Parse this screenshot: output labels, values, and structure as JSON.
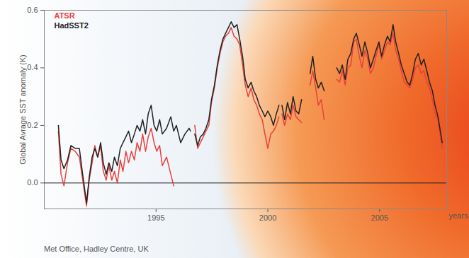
{
  "chart_data": {
    "type": "line",
    "y_label": "Global Avrage SST anomaly (K)",
    "x_label": "years",
    "caption": "Met Office, Hadley Centre, UK",
    "legend": "top-left",
    "grid": false,
    "xlim": [
      1990,
      2008
    ],
    "xticks": [
      1995,
      2000,
      2005
    ],
    "ylim": [
      -0.09,
      0.6
    ],
    "yticks": [
      {
        "value": 0,
        "label": "0.0"
      },
      0.2,
      0.4,
      0.6
    ],
    "x": [
      1990.63,
      1990.75,
      1990.88,
      1991.04,
      1991.19,
      1991.38,
      1991.57,
      1991.7,
      1991.89,
      1992.01,
      1992.14,
      1992.26,
      1992.39,
      1992.52,
      1992.64,
      1992.77,
      1992.89,
      1993.02,
      1993.14,
      1993.27,
      1993.4,
      1993.52,
      1993.65,
      1993.77,
      1993.9,
      1994.03,
      1994.15,
      1994.28,
      1994.4,
      1994.53,
      1994.65,
      1994.78,
      1994.91,
      1995.03,
      1995.16,
      1995.28,
      1995.47,
      1995.66,
      1995.79,
      1995.91,
      1996.1,
      1996.29,
      1996.48,
      1996.54,
      1996.64,
      1996.73,
      1996.86,
      1996.98,
      1997.11,
      1997.23,
      1997.36,
      1997.48,
      1997.61,
      1997.74,
      1997.86,
      1997.99,
      1998.11,
      1998.24,
      1998.36,
      1998.49,
      1998.62,
      1998.74,
      1998.87,
      1998.99,
      1999.12,
      1999.25,
      1999.37,
      1999.5,
      1999.62,
      1999.75,
      1999.87,
      2000.0,
      2000.13,
      2000.25,
      2000.38,
      2000.5,
      2000.57,
      2000.63,
      2000.75,
      2000.88,
      2001.01,
      2001.13,
      2001.26,
      2001.38,
      2001.51,
      2001.7,
      2001.89,
      2002.01,
      2002.14,
      2002.26,
      2002.39,
      2002.52,
      2002.83,
      2003.08,
      2003.21,
      2003.33,
      2003.46,
      2003.58,
      2003.71,
      2003.84,
      2003.96,
      2004.09,
      2004.21,
      2004.34,
      2004.47,
      2004.59,
      2004.72,
      2004.84,
      2004.97,
      2005.09,
      2005.22,
      2005.35,
      2005.47,
      2005.6,
      2005.72,
      2005.85,
      2005.97,
      2006.1,
      2006.23,
      2006.35,
      2006.48,
      2006.6,
      2006.73,
      2006.86,
      2006.98,
      2007.11,
      2007.23,
      2007.36,
      2007.48,
      2007.61,
      2007.8
    ],
    "series": [
      {
        "name": "ATSR",
        "color": "#e8413c",
        "values": [
          0.18,
          0.03,
          -0.01,
          0.07,
          0.12,
          0.11,
          0.09,
          0.02,
          -0.08,
          0.01,
          0.07,
          0.13,
          0.09,
          0.13,
          0.04,
          0.01,
          0.06,
          0.01,
          0.04,
          0.0,
          0.08,
          0.04,
          0.11,
          0.07,
          0.11,
          0.08,
          0.14,
          0.11,
          0.17,
          0.11,
          0.16,
          0.19,
          0.14,
          0.11,
          0.13,
          0.06,
          0.09,
          0.03,
          -0.01,
          null,
          null,
          null,
          null,
          null,
          null,
          0.2,
          0.12,
          0.14,
          0.16,
          0.18,
          0.2,
          0.28,
          0.33,
          0.4,
          0.45,
          0.49,
          0.51,
          0.52,
          0.54,
          0.51,
          0.5,
          0.48,
          0.41,
          0.34,
          0.3,
          0.33,
          0.29,
          0.27,
          0.24,
          0.22,
          0.17,
          0.12,
          0.17,
          0.18,
          0.2,
          0.23,
          null,
          0.24,
          0.2,
          0.24,
          0.22,
          0.27,
          0.23,
          0.22,
          0.21,
          null,
          0.34,
          0.39,
          0.33,
          0.27,
          0.29,
          0.22,
          null,
          0.36,
          0.35,
          0.39,
          0.34,
          0.4,
          0.41,
          0.49,
          0.5,
          0.44,
          0.4,
          0.46,
          0.43,
          0.38,
          0.4,
          0.44,
          0.48,
          0.43,
          0.46,
          0.49,
          0.48,
          0.52,
          0.46,
          0.43,
          0.39,
          0.35,
          0.34,
          0.33,
          0.36,
          0.4,
          0.41,
          0.38,
          0.39,
          0.35,
          0.33,
          0.29,
          0.24,
          0.22,
          0.12
        ]
      },
      {
        "name": "HadSST2",
        "color": "#222222",
        "values": [
          0.2,
          0.08,
          0.05,
          0.08,
          0.13,
          0.12,
          0.12,
          0.04,
          -0.07,
          0.02,
          0.09,
          0.12,
          0.09,
          0.14,
          0.07,
          0.03,
          0.07,
          0.04,
          0.09,
          0.06,
          0.12,
          0.14,
          0.16,
          0.18,
          0.14,
          0.17,
          0.2,
          0.18,
          0.22,
          0.17,
          0.24,
          0.27,
          0.2,
          0.18,
          0.22,
          0.17,
          0.19,
          0.23,
          0.18,
          0.2,
          0.14,
          0.17,
          0.19,
          0.18,
          null,
          0.17,
          0.13,
          0.16,
          0.17,
          0.19,
          0.22,
          0.29,
          0.34,
          0.41,
          0.46,
          0.5,
          0.52,
          0.54,
          0.56,
          0.54,
          0.55,
          0.5,
          0.44,
          0.36,
          0.33,
          0.35,
          0.32,
          0.3,
          0.27,
          0.25,
          0.23,
          0.25,
          0.23,
          0.2,
          0.24,
          0.27,
          null,
          0.27,
          0.22,
          0.28,
          0.24,
          0.3,
          0.25,
          0.24,
          0.29,
          null,
          0.38,
          0.44,
          0.36,
          0.33,
          0.35,
          0.32,
          null,
          0.4,
          0.38,
          0.41,
          0.36,
          0.43,
          0.45,
          0.5,
          0.52,
          0.48,
          0.44,
          0.49,
          0.45,
          0.4,
          0.43,
          0.46,
          0.49,
          0.44,
          0.48,
          0.51,
          0.49,
          0.55,
          0.49,
          0.45,
          0.41,
          0.38,
          0.35,
          0.34,
          0.38,
          0.43,
          0.45,
          0.41,
          0.43,
          0.39,
          0.35,
          0.32,
          0.27,
          0.23,
          0.14
        ]
      }
    ]
  }
}
